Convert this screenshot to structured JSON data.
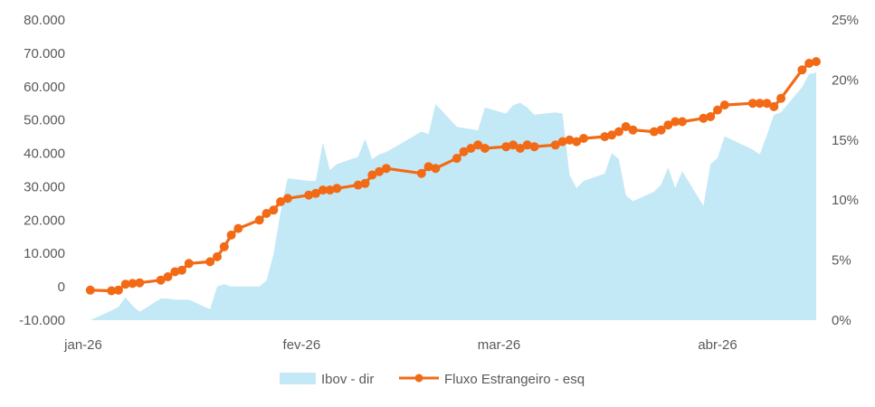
{
  "chart_data": {
    "type": "line",
    "colors": {
      "area": "#c3e8f6",
      "line": "#f26a16"
    },
    "x_ticks": [
      "jan-26",
      "fev-26",
      "mar-26",
      "abr-26"
    ],
    "left_axis": {
      "ylim": [
        -10000,
        80000
      ],
      "ticks": [
        -10000,
        0,
        10000,
        20000,
        30000,
        40000,
        50000,
        60000,
        70000,
        80000
      ],
      "tick_labels": [
        "-10.000",
        "0",
        "10.000",
        "20.000",
        "30.000",
        "40.000",
        "50.000",
        "60.000",
        "70.000",
        "80.000"
      ]
    },
    "right_axis": {
      "ylim": [
        0,
        25
      ],
      "ticks": [
        0,
        5,
        10,
        15,
        20,
        25
      ],
      "tick_labels": [
        "0%",
        "5%",
        "10%",
        "15%",
        "20%",
        "25%"
      ]
    },
    "legend": {
      "position": "bottom",
      "area_label": "Ibov - dir",
      "line_label": "Fluxo Estrangeiro - esq"
    },
    "grid": false,
    "series": [
      {
        "name": "Ibov - dir",
        "type": "area",
        "axis": "right",
        "x": [
          "2026-01-02",
          "2026-01-05",
          "2026-01-06",
          "2026-01-07",
          "2026-01-08",
          "2026-01-09",
          "2026-01-12",
          "2026-01-13",
          "2026-01-14",
          "2026-01-15",
          "2026-01-16",
          "2026-01-19",
          "2026-01-20",
          "2026-01-21",
          "2026-01-22",
          "2026-01-23",
          "2026-01-26",
          "2026-01-27",
          "2026-01-28",
          "2026-01-29",
          "2026-01-30",
          "2026-02-02",
          "2026-02-03",
          "2026-02-04",
          "2026-02-05",
          "2026-02-06",
          "2026-02-09",
          "2026-02-10",
          "2026-02-11",
          "2026-02-12",
          "2026-02-13",
          "2026-02-18",
          "2026-02-19",
          "2026-02-20",
          "2026-02-23",
          "2026-02-24",
          "2026-02-25",
          "2026-02-26",
          "2026-02-27",
          "2026-03-02",
          "2026-03-03",
          "2026-03-04",
          "2026-03-05",
          "2026-03-06",
          "2026-03-09",
          "2026-03-10",
          "2026-03-11",
          "2026-03-12",
          "2026-03-13",
          "2026-03-16",
          "2026-03-17",
          "2026-03-18",
          "2026-03-19",
          "2026-03-20",
          "2026-03-23",
          "2026-03-24",
          "2026-03-25",
          "2026-03-26",
          "2026-03-27",
          "2026-03-30",
          "2026-03-31",
          "2026-04-01",
          "2026-04-02",
          "2026-04-06",
          "2026-04-07",
          "2026-04-08",
          "2026-04-09",
          "2026-04-10",
          "2026-04-13",
          "2026-04-14",
          "2026-04-15"
        ],
        "values": [
          0.0,
          0.8,
          1.1,
          1.9,
          1.2,
          0.7,
          1.8,
          1.8,
          1.7,
          1.7,
          1.7,
          0.9,
          2.8,
          3.0,
          2.8,
          2.8,
          2.8,
          3.3,
          5.5,
          9.0,
          11.8,
          11.6,
          11.6,
          14.8,
          12.5,
          13.0,
          13.6,
          15.1,
          13.4,
          13.8,
          14.0,
          15.7,
          15.5,
          18.0,
          16.1,
          16.0,
          15.9,
          15.8,
          17.7,
          17.2,
          17.9,
          18.1,
          17.7,
          17.1,
          17.3,
          17.2,
          12.1,
          11.0,
          11.6,
          12.2,
          13.9,
          13.4,
          10.4,
          9.9,
          10.7,
          11.3,
          12.7,
          11.0,
          12.4,
          9.5,
          13.0,
          13.5,
          15.3,
          14.2,
          13.8,
          15.4,
          17.1,
          17.3,
          19.4,
          20.5,
          20.6
        ]
      },
      {
        "name": "Fluxo Estrangeiro - esq",
        "type": "line",
        "axis": "left",
        "x": [
          "2026-01-02",
          "2026-01-05",
          "2026-01-06",
          "2026-01-07",
          "2026-01-08",
          "2026-01-09",
          "2026-01-12",
          "2026-01-13",
          "2026-01-14",
          "2026-01-15",
          "2026-01-16",
          "2026-01-19",
          "2026-01-20",
          "2026-01-21",
          "2026-01-22",
          "2026-01-23",
          "2026-01-26",
          "2026-01-27",
          "2026-01-28",
          "2026-01-29",
          "2026-01-30",
          "2026-02-02",
          "2026-02-03",
          "2026-02-04",
          "2026-02-05",
          "2026-02-06",
          "2026-02-09",
          "2026-02-10",
          "2026-02-11",
          "2026-02-12",
          "2026-02-13",
          "2026-02-18",
          "2026-02-19",
          "2026-02-20",
          "2026-02-23",
          "2026-02-24",
          "2026-02-25",
          "2026-02-26",
          "2026-02-27",
          "2026-03-02",
          "2026-03-03",
          "2026-03-04",
          "2026-03-05",
          "2026-03-06",
          "2026-03-09",
          "2026-03-10",
          "2026-03-11",
          "2026-03-12",
          "2026-03-13",
          "2026-03-16",
          "2026-03-17",
          "2026-03-18",
          "2026-03-19",
          "2026-03-20",
          "2026-03-23",
          "2026-03-24",
          "2026-03-25",
          "2026-03-26",
          "2026-03-27",
          "2026-03-30",
          "2026-03-31",
          "2026-04-01",
          "2026-04-02",
          "2026-04-06",
          "2026-04-07",
          "2026-04-08",
          "2026-04-09",
          "2026-04-10",
          "2026-04-13",
          "2026-04-14",
          "2026-04-15"
        ],
        "values": [
          -1000,
          -1200,
          -1000,
          800,
          1000,
          1200,
          2000,
          3000,
          4500,
          5000,
          7000,
          7500,
          9000,
          12000,
          15500,
          17500,
          20000,
          22000,
          23000,
          25500,
          26500,
          27500,
          28000,
          29000,
          29000,
          29500,
          30500,
          31000,
          33500,
          34500,
          35500,
          34000,
          36000,
          35500,
          38500,
          40500,
          41500,
          42500,
          41500,
          42000,
          42500,
          41500,
          42500,
          42000,
          42500,
          43500,
          44000,
          43500,
          44500,
          45000,
          45500,
          46500,
          48000,
          47000,
          46500,
          47000,
          48500,
          49500,
          49500,
          50500,
          51000,
          53000,
          54500,
          55000,
          55000,
          55000,
          54000,
          56500,
          65000,
          67000,
          67500
        ]
      }
    ]
  }
}
